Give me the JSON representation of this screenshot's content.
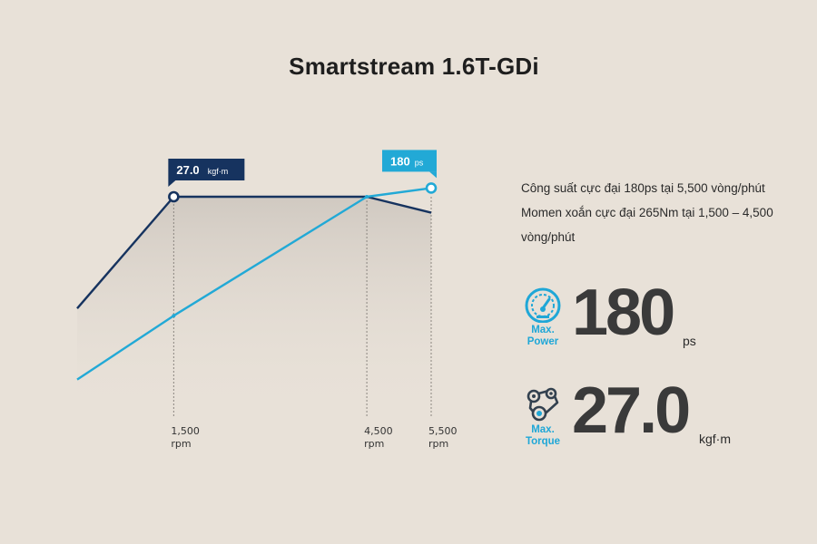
{
  "title": "Smartstream 1.6T-GDi",
  "description": {
    "line1": "Công suất cực đại 180ps tại 5,500 vòng/phút",
    "line2": "Momen xoắn cực đại 265Nm tại 1,500 – 4,500",
    "line3": "vòng/phút"
  },
  "power": {
    "value": "180",
    "unit": "ps",
    "label_line1": "Max.",
    "label_line2": "Power",
    "icon": "speedometer-icon"
  },
  "torque": {
    "value": "27.0",
    "unit": "kgf·m",
    "label_line1": "Max.",
    "label_line2": "Torque",
    "icon": "engine-belt-icon"
  },
  "colors": {
    "background": "#e8e1d8",
    "torque_line": "#16335f",
    "power_line": "#22a9d6",
    "accent": "#1fa7d7"
  },
  "chart_data": {
    "type": "line",
    "x_ticks": [
      {
        "value": 1500,
        "label": "1,500",
        "unit": "rpm"
      },
      {
        "value": 4500,
        "label": "4,500",
        "unit": "rpm"
      },
      {
        "value": 5500,
        "label": "5,500",
        "unit": "rpm"
      }
    ],
    "xlim": [
      0,
      5500
    ],
    "series": [
      {
        "key": "torque",
        "x": [
          0,
          1500,
          4500,
          5500
        ],
        "y": [
          0.23,
          1.0,
          1.0,
          0.89
        ],
        "peak_x": 1500,
        "callout_value": "27.0",
        "callout_unit": "kgf·m"
      },
      {
        "key": "power",
        "x": [
          0,
          1500,
          4500,
          5500
        ],
        "y": [
          -0.26,
          0.18,
          1.0,
          1.06
        ],
        "peak_x": 5500,
        "callout_value": "180",
        "callout_unit": "ps"
      }
    ],
    "grid": false,
    "legend": "none"
  }
}
